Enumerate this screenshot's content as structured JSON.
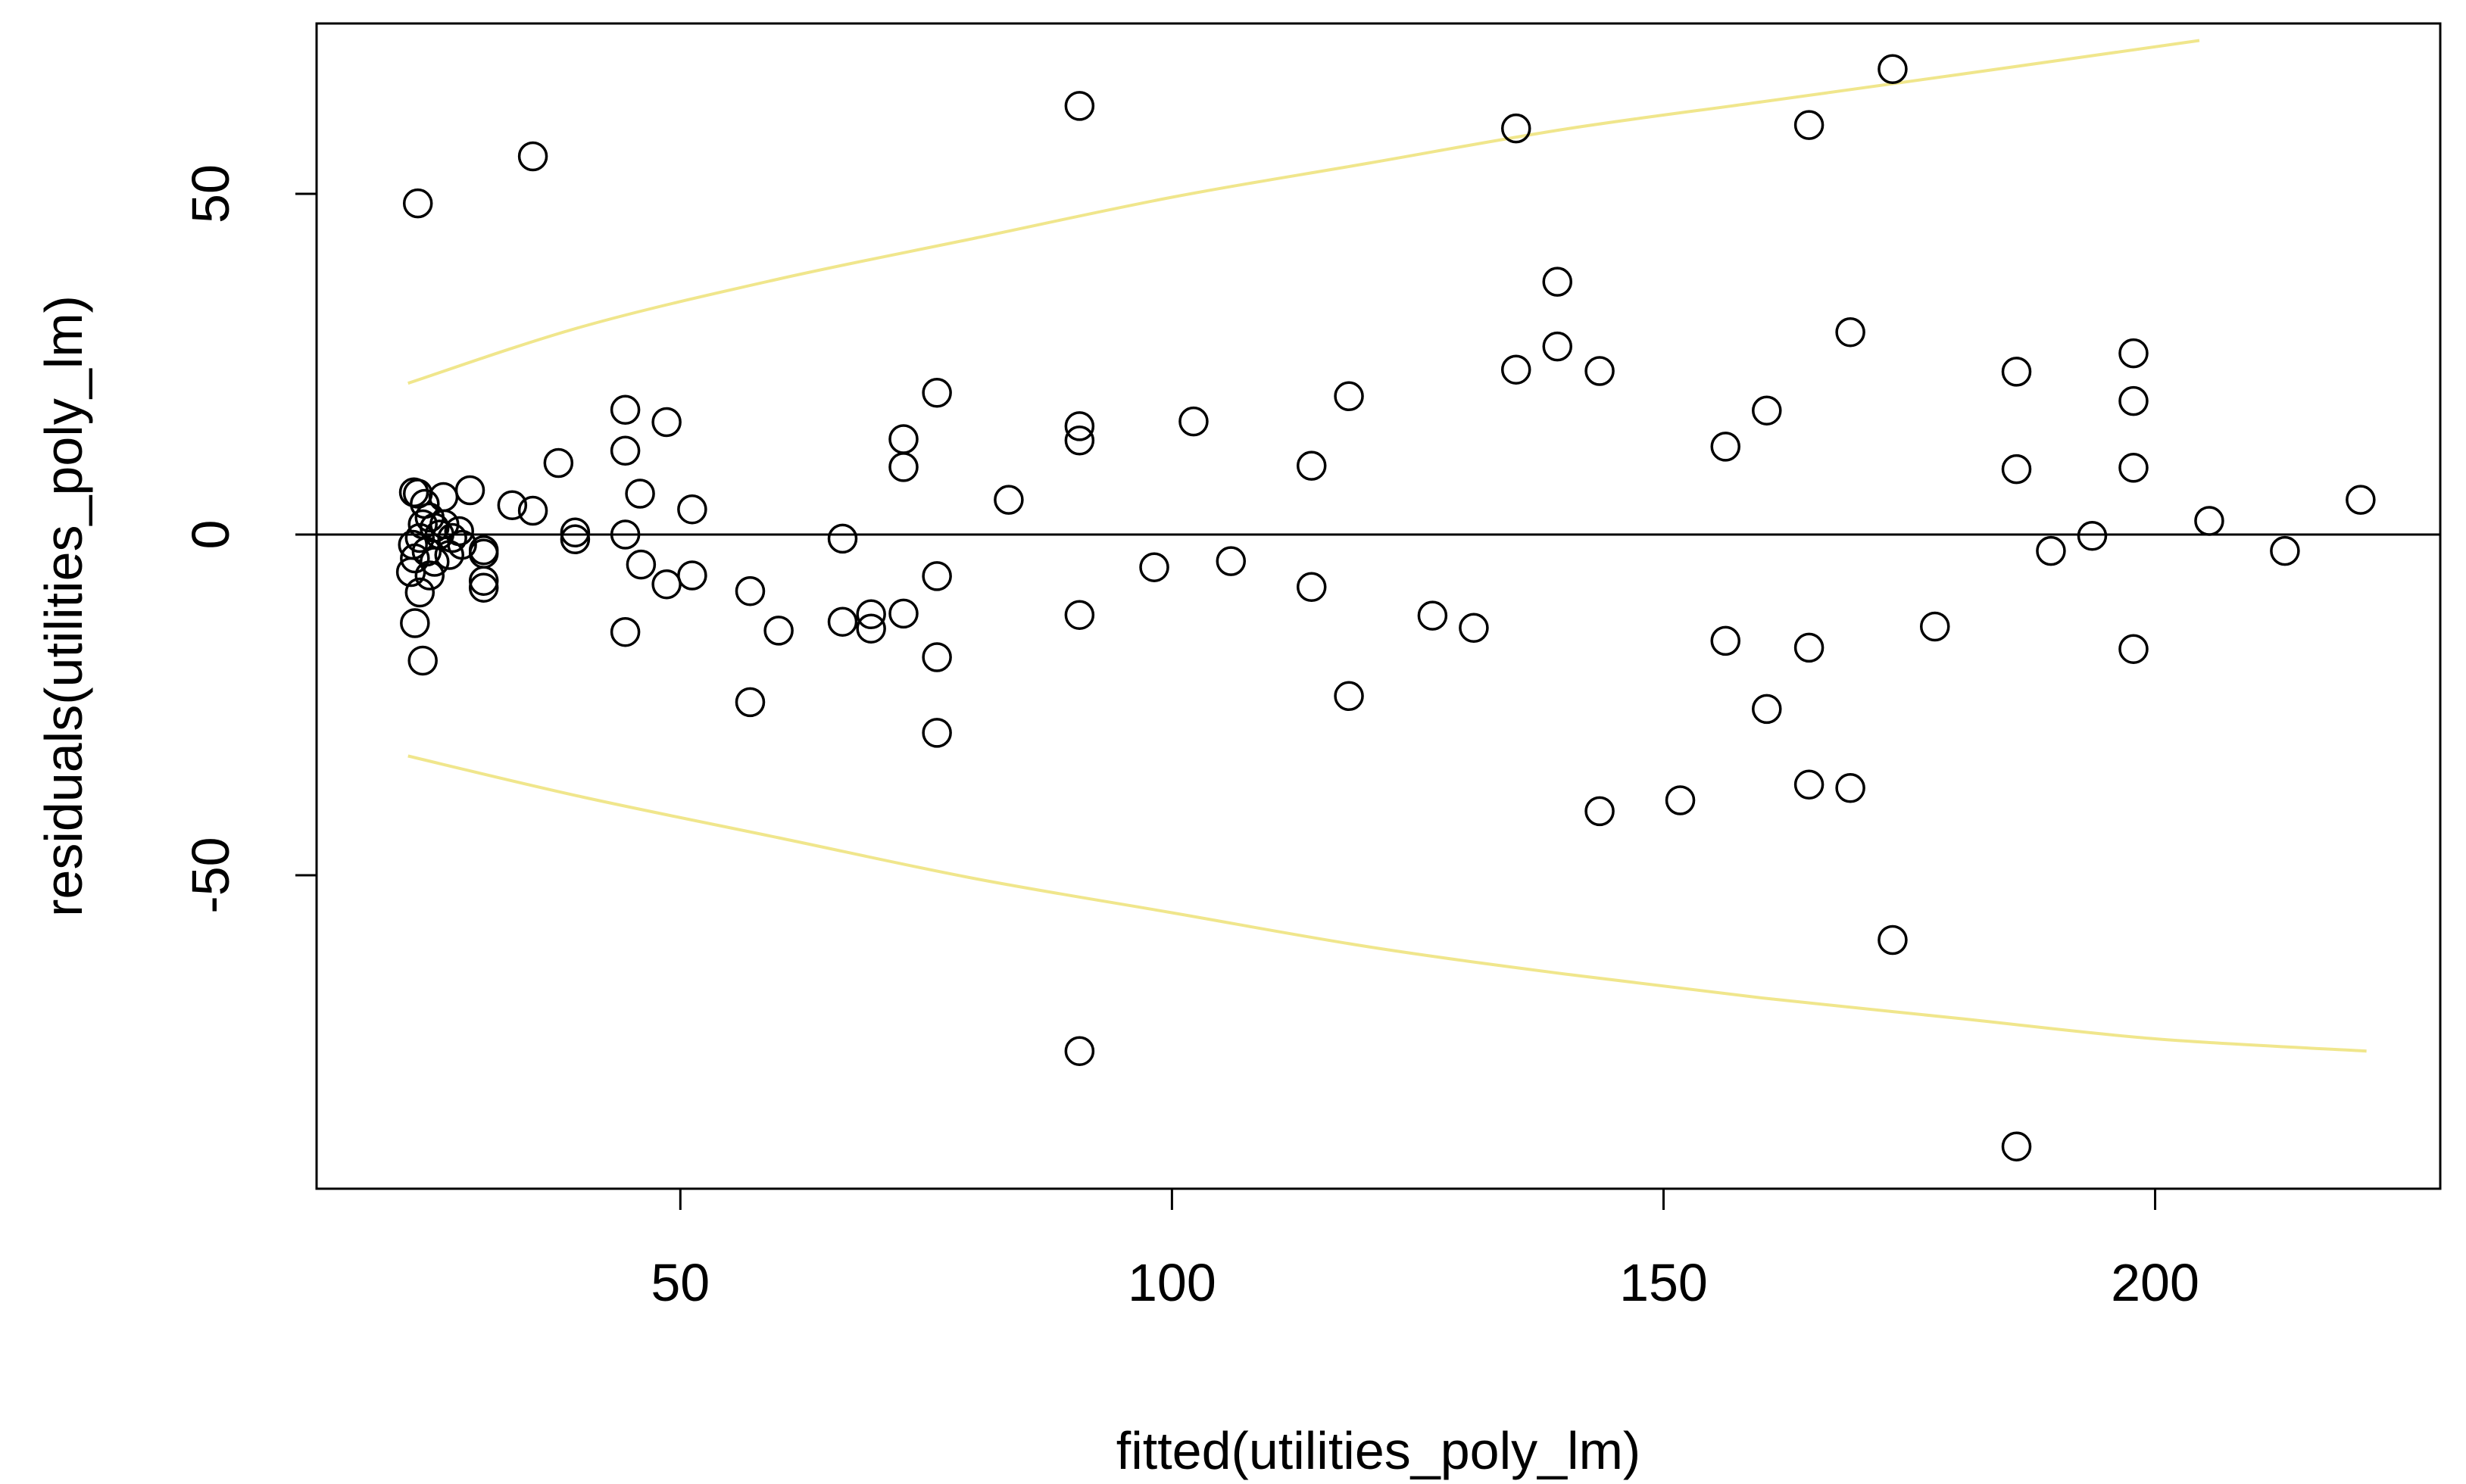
{
  "chart_data": {
    "type": "scatter",
    "title": "",
    "xlabel": "fitted(utilities_poly_lm)",
    "ylabel": "residuals(utilities_poly_lm)",
    "xlim": [
      13,
      229
    ],
    "ylim": [
      -96,
      75
    ],
    "xticks": [
      50,
      100,
      150,
      200
    ],
    "yticks": [
      50,
      0,
      -50
    ],
    "xtick_labels": [
      "50",
      "100",
      "150",
      "200"
    ],
    "ytick_labels": [
      "50",
      "0",
      "-50"
    ],
    "grid": false,
    "colors": {
      "points": "#000000",
      "bands": "#f0e68c",
      "zero_line": "#000000"
    },
    "zero_line": {
      "y": 0
    },
    "points": [
      [
        23.3,
        48.6
      ],
      [
        35.0,
        55.5
      ],
      [
        90.6,
        62.9
      ],
      [
        135.0,
        59.6
      ],
      [
        173.3,
        68.3
      ],
      [
        164.8,
        60.1
      ],
      [
        139.2,
        37.1
      ],
      [
        139.2,
        27.6
      ],
      [
        135.0,
        24.2
      ],
      [
        143.5,
        24.0
      ],
      [
        169.0,
        29.7
      ],
      [
        118.0,
        20.3
      ],
      [
        160.5,
        18.2
      ],
      [
        156.3,
        12.9
      ],
      [
        185.9,
        23.9
      ],
      [
        185.9,
        9.6
      ],
      [
        197.8,
        26.6
      ],
      [
        197.8,
        19.6
      ],
      [
        197.8,
        9.8
      ],
      [
        205.5,
        2.0
      ],
      [
        220.9,
        5.1
      ],
      [
        213.2,
        -2.4
      ],
      [
        193.6,
        -0.2
      ],
      [
        189.4,
        -2.4
      ],
      [
        102.2,
        16.6
      ],
      [
        114.2,
        10.1
      ],
      [
        90.6,
        15.9
      ],
      [
        90.6,
        13.8
      ],
      [
        76.1,
        20.8
      ],
      [
        72.7,
        14.0
      ],
      [
        72.7,
        9.9
      ],
      [
        83.4,
        5.1
      ],
      [
        66.5,
        -0.6
      ],
      [
        51.2,
        3.7
      ],
      [
        48.6,
        16.5
      ],
      [
        44.4,
        18.3
      ],
      [
        44.4,
        12.3
      ],
      [
        37.6,
        10.5
      ],
      [
        45.9,
        6.0
      ],
      [
        32.9,
        4.3
      ],
      [
        35.0,
        3.5
      ],
      [
        28.6,
        6.5
      ],
      [
        25.9,
        5.5
      ],
      [
        23.3,
        6.0
      ],
      [
        22.9,
        6.2
      ],
      [
        24.0,
        4.5
      ],
      [
        24.5,
        2.5
      ],
      [
        26.0,
        1.5
      ],
      [
        27.5,
        0.5
      ],
      [
        25.5,
        0.0
      ],
      [
        23.5,
        -0.5
      ],
      [
        22.8,
        -1.5
      ],
      [
        24.2,
        -2.5
      ],
      [
        23.0,
        -3.5
      ],
      [
        25.0,
        -4.0
      ],
      [
        26.5,
        -3.0
      ],
      [
        27.8,
        -1.5
      ],
      [
        22.6,
        -5.5
      ],
      [
        24.5,
        -6.0
      ],
      [
        23.5,
        -8.5
      ],
      [
        25.0,
        1.0
      ],
      [
        23.8,
        1.5
      ],
      [
        26.8,
        -0.5
      ],
      [
        30.0,
        -2.3
      ],
      [
        30.0,
        -2.8
      ],
      [
        30.0,
        -6.8
      ],
      [
        30.0,
        -7.8
      ],
      [
        23.0,
        -13.0
      ],
      [
        23.8,
        -18.5
      ],
      [
        39.3,
        0.3
      ],
      [
        39.3,
        -0.7
      ],
      [
        44.4,
        0.0
      ],
      [
        44.4,
        -14.3
      ],
      [
        46.0,
        -4.4
      ],
      [
        48.6,
        -7.3
      ],
      [
        51.2,
        -6.0
      ],
      [
        57.1,
        -8.3
      ],
      [
        60.0,
        -14.1
      ],
      [
        57.1,
        -24.6
      ],
      [
        66.5,
        -12.8
      ],
      [
        69.4,
        -11.7
      ],
      [
        69.4,
        -13.8
      ],
      [
        72.7,
        -11.6
      ],
      [
        76.1,
        -6.1
      ],
      [
        76.1,
        -18.0
      ],
      [
        76.1,
        -29.1
      ],
      [
        90.6,
        -11.8
      ],
      [
        98.2,
        -4.8
      ],
      [
        106.0,
        -3.9
      ],
      [
        114.2,
        -7.7
      ],
      [
        118.0,
        -23.7
      ],
      [
        126.5,
        -11.9
      ],
      [
        130.7,
        -13.7
      ],
      [
        156.3,
        -15.6
      ],
      [
        164.8,
        -16.6
      ],
      [
        177.6,
        -13.5
      ],
      [
        197.8,
        -16.8
      ],
      [
        160.5,
        -25.6
      ],
      [
        164.8,
        -36.7
      ],
      [
        169.0,
        -37.2
      ],
      [
        143.5,
        -40.6
      ],
      [
        151.7,
        -39.0
      ],
      [
        173.3,
        -59.5
      ],
      [
        90.6,
        -75.8
      ],
      [
        185.9,
        -89.8
      ]
    ],
    "bands": {
      "upper": [
        [
          22.3,
          22.2
        ],
        [
          40,
          30.5
        ],
        [
          60,
          37.5
        ],
        [
          80,
          43.5
        ],
        [
          100,
          49.5
        ],
        [
          120,
          54.5
        ],
        [
          140,
          59.5
        ],
        [
          160,
          63.5
        ],
        [
          180,
          67.5
        ],
        [
          204.5,
          72.5
        ]
      ],
      "lower": [
        [
          22.3,
          -32.5
        ],
        [
          40,
          -38.5
        ],
        [
          60,
          -44.5
        ],
        [
          80,
          -50.5
        ],
        [
          100,
          -55.5
        ],
        [
          120,
          -60.5
        ],
        [
          140,
          -64.5
        ],
        [
          160,
          -68.0
        ],
        [
          180,
          -71.0
        ],
        [
          200,
          -74.0
        ],
        [
          221.5,
          -75.8
        ]
      ]
    }
  }
}
